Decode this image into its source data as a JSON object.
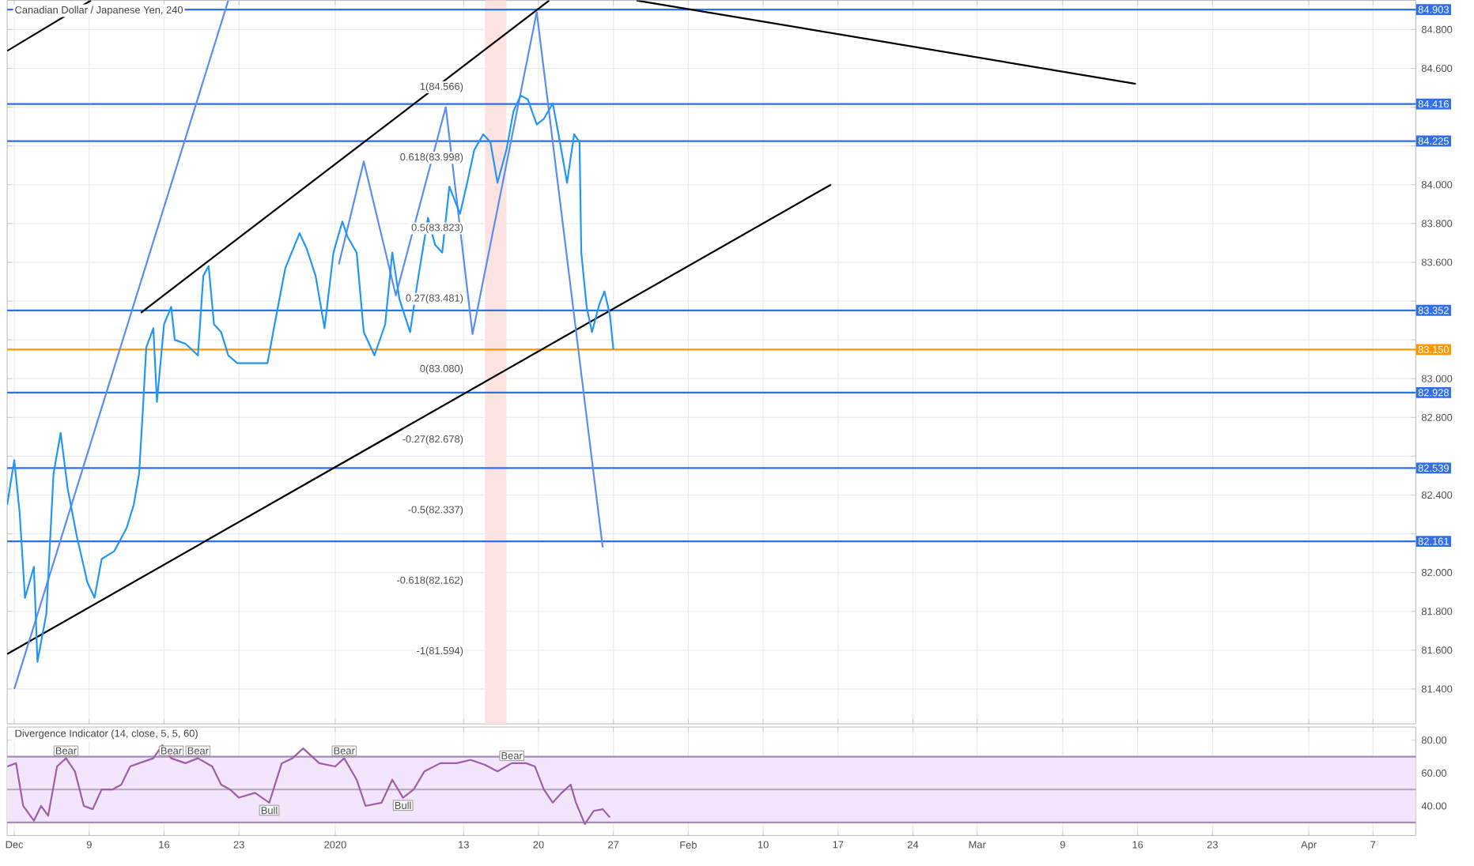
{
  "chart_data": [
    {
      "type": "line",
      "title": "Canadian Dollar / Japanese Yen, 240",
      "xlim": [
        "2019-12-01T08:00",
        "2020-04-11T00:00"
      ],
      "ylim": [
        81.22,
        84.95
      ],
      "xticks": [
        {
          "value": "2019-12-02",
          "label": null
        },
        {
          "value": "2019-12-09",
          "label": null
        },
        {
          "value": "2019-12-16",
          "label": null
        },
        {
          "value": "2019-12-23",
          "label": null
        },
        {
          "value": "2020-01-01",
          "label": null
        },
        {
          "value": "2020-01-13",
          "label": null
        },
        {
          "value": "2020-01-20",
          "label": null
        },
        {
          "value": "2020-01-27",
          "label": null
        },
        {
          "value": "2020-02-03",
          "label": null
        },
        {
          "value": "2020-02-10",
          "label": null
        },
        {
          "value": "2020-02-17",
          "label": null
        },
        {
          "value": "2020-02-24",
          "label": null
        },
        {
          "value": "2020-03-01",
          "label": null
        },
        {
          "value": "2020-03-09",
          "label": null
        },
        {
          "value": "2020-03-16",
          "label": null
        },
        {
          "value": "2020-03-23",
          "label": null
        },
        {
          "value": "2020-04-01",
          "label": null
        },
        {
          "value": "2020-04-07",
          "label": null
        }
      ],
      "yticks": [
        {
          "value": 81.4,
          "label": "81.400"
        },
        {
          "value": 81.6,
          "label": "81.600"
        },
        {
          "value": 81.8,
          "label": "81.800"
        },
        {
          "value": 82.0,
          "label": "82.000"
        },
        {
          "value": 82.2,
          "label": null
        },
        {
          "value": 82.4,
          "label": "82.400"
        },
        {
          "value": 82.6,
          "label": null
        },
        {
          "value": 82.8,
          "label": "82.800"
        },
        {
          "value": 83.0,
          "label": "83.000"
        },
        {
          "value": 83.2,
          "label": null
        },
        {
          "value": 83.4,
          "label": null
        },
        {
          "value": 83.6,
          "label": "83.600"
        },
        {
          "value": 83.8,
          "label": "83.800"
        },
        {
          "value": 84.0,
          "label": "84.000"
        },
        {
          "value": 84.2,
          "label": null
        },
        {
          "value": 84.4,
          "label": null
        },
        {
          "value": 84.6,
          "label": "84.600"
        },
        {
          "value": 84.8,
          "label": "84.800"
        }
      ],
      "grid": true,
      "tick_labels": "y",
      "bands": [
        {
          "axis": "x",
          "from": "2020-01-15",
          "to": "2020-01-17",
          "color": "#fde2e2"
        }
      ],
      "ref_lines": [
        {
          "axis": "y",
          "value": 84.903,
          "label": "84.903",
          "color": "#2f6fe8"
        },
        {
          "axis": "y",
          "value": 84.416,
          "label": "84.416",
          "color": "#2f6fe8"
        },
        {
          "axis": "y",
          "value": 84.225,
          "label": "84.225",
          "color": "#2f6fe8"
        },
        {
          "axis": "y",
          "value": 83.352,
          "label": "83.352",
          "color": "#2f6fe8"
        },
        {
          "axis": "y",
          "value": 83.15,
          "label": "83.150",
          "color": "#ff9800"
        },
        {
          "axis": "y",
          "value": 82.928,
          "label": "82.928",
          "color": "#2f6fe8"
        },
        {
          "axis": "y",
          "value": 82.539,
          "label": "82.539",
          "color": "#2f6fe8"
        },
        {
          "axis": "y",
          "value": 82.161,
          "label": "82.161",
          "color": "#2f6fe8"
        }
      ],
      "series": [
        {
          "color": "#000000",
          "x": [
            "2019-12-01T08:00",
            "2019-12-09T04:00"
          ],
          "values": [
            84.69,
            84.95
          ]
        },
        {
          "color": "#000000",
          "x": [
            "2019-12-13T20:00",
            "2020-01-21T00:00"
          ],
          "values": [
            83.34,
            84.95
          ]
        },
        {
          "color": "#000000",
          "x": [
            "2019-12-01T08:00",
            "2020-02-16T08:00"
          ],
          "values": [
            81.58,
            84.0
          ]
        },
        {
          "color": "#000000",
          "x": [
            "2020-01-29T04:00",
            "2020-03-15T20:00"
          ],
          "values": [
            84.95,
            84.52
          ]
        },
        {
          "color": "#5b8def",
          "x": [
            "2019-12-02T00:00",
            "2019-12-22T00:00"
          ],
          "values": [
            81.4,
            84.95
          ]
        },
        {
          "color": "#5b8def",
          "x": [
            "2020-01-01T08:00",
            "2020-01-03T16:00",
            "2020-01-06T16:00",
            "2020-01-11T08:00",
            "2020-01-13T20:00",
            "2020-01-19T20:00",
            "2020-01-26T00:00"
          ],
          "values": [
            83.59,
            84.12,
            83.43,
            84.4,
            83.23,
            84.89,
            82.13
          ]
        },
        {
          "color": "#2196f3",
          "x": [
            "2019-12-01T08:00",
            "2019-12-02T00:00",
            "2019-12-02T12:00",
            "2019-12-03T00:00",
            "2019-12-03T20:00",
            "2019-12-04T04:00",
            "2019-12-05T00:00",
            "2019-12-05T16:00",
            "2019-12-06T08:00",
            "2019-12-07T00:00",
            "2019-12-07T20:00",
            "2019-12-08T20:00",
            "2019-12-09T12:00",
            "2019-12-10T04:00",
            "2019-12-11T08:00",
            "2019-12-12T12:00",
            "2019-12-13T04:00",
            "2019-12-13T16:00",
            "2019-12-14T00:00",
            "2019-12-14T08:00",
            "2019-12-15T00:00",
            "2019-12-15T08:00",
            "2019-12-16T00:00",
            "2019-12-16T16:00",
            "2019-12-17T00:00",
            "2019-12-18T00:00",
            "2019-12-19T04:00",
            "2019-12-19T16:00",
            "2019-12-20T04:00",
            "2019-12-20T16:00",
            "2019-12-21T08:00",
            "2019-12-22T00:00",
            "2019-12-22T20:00",
            "2019-12-23T12:00",
            "2019-12-24T08:00",
            "2019-12-25T16:00",
            "2019-12-26T08:00",
            "2019-12-27T08:00",
            "2019-12-28T16:00",
            "2019-12-29T08:00",
            "2019-12-30T04:00",
            "2019-12-31T00:00",
            "2019-12-31T20:00",
            "2020-01-01T16:00",
            "2020-01-02T04:00",
            "2020-01-03T00:00",
            "2020-01-03T16:00",
            "2020-01-04T16:00",
            "2020-01-05T16:00",
            "2020-01-06T08:00",
            "2020-01-07T00:00",
            "2020-01-08T00:00",
            "2020-01-08T16:00",
            "2020-01-09T16:00",
            "2020-01-10T08:00",
            "2020-01-11T00:00",
            "2020-01-11T16:00",
            "2020-01-12T16:00",
            "2020-01-13T08:00",
            "2020-01-14T00:00",
            "2020-01-14T20:00",
            "2020-01-15T12:00",
            "2020-01-16T04:00",
            "2020-01-17T00:00",
            "2020-01-17T16:00",
            "2020-01-18T08:00",
            "2020-01-19T00:00",
            "2020-01-19T20:00",
            "2020-01-20T12:00",
            "2020-01-21T08:00",
            "2020-01-22T00:00",
            "2020-01-22T16:00",
            "2020-01-23T08:00",
            "2020-01-23T20:00",
            "2020-01-24T00:00",
            "2020-01-24T12:00",
            "2020-01-25T00:00",
            "2020-01-25T16:00",
            "2020-01-26T04:00",
            "2020-01-26T16:00",
            "2020-01-27T00:00"
          ],
          "values": [
            82.35,
            82.58,
            82.31,
            81.87,
            82.03,
            81.54,
            81.79,
            82.51,
            82.72,
            82.43,
            82.19,
            81.95,
            81.87,
            82.07,
            82.11,
            82.23,
            82.35,
            82.51,
            82.82,
            83.16,
            83.26,
            82.88,
            83.28,
            83.37,
            83.2,
            83.18,
            83.12,
            83.53,
            83.58,
            83.28,
            83.24,
            83.12,
            83.08,
            83.08,
            83.08,
            83.08,
            83.28,
            83.57,
            83.75,
            83.67,
            83.53,
            83.26,
            83.65,
            83.81,
            83.73,
            83.65,
            83.24,
            83.12,
            83.28,
            83.65,
            83.41,
            83.24,
            83.49,
            83.83,
            83.69,
            83.65,
            83.99,
            83.85,
            84.01,
            84.18,
            84.26,
            84.22,
            84.01,
            84.18,
            84.38,
            84.46,
            84.44,
            84.31,
            84.34,
            84.42,
            84.22,
            84.01,
            84.26,
            84.22,
            83.65,
            83.37,
            83.24,
            83.38,
            83.45,
            83.33,
            83.15
          ]
        }
      ],
      "annotations": [
        "1(84.566)",
        "0.618(83.998)",
        "0.5(83.823)",
        "0.27(83.481)",
        "0(83.080)",
        "-0.27(82.678)",
        "-0.5(82.337)",
        "-0.618(82.162)",
        "-1(81.594)"
      ]
    },
    {
      "type": "line",
      "title": "Divergence Indicator (14, close, 5, 5, 60)",
      "xlim": [
        "2019-12-01T08:00",
        "2020-04-11T00:00"
      ],
      "ylim": [
        22,
        88
      ],
      "xticks": [
        {
          "value": "2019-12-02",
          "label": "Dec"
        },
        {
          "value": "2019-12-09",
          "label": "9"
        },
        {
          "value": "2019-12-16",
          "label": "16"
        },
        {
          "value": "2019-12-23",
          "label": "23"
        },
        {
          "value": "2020-01-01",
          "label": "2020"
        },
        {
          "value": "2020-01-13",
          "label": "13"
        },
        {
          "value": "2020-01-20",
          "label": "20"
        },
        {
          "value": "2020-01-27",
          "label": "27"
        },
        {
          "value": "2020-02-03",
          "label": "Feb"
        },
        {
          "value": "2020-02-10",
          "label": "10"
        },
        {
          "value": "2020-02-17",
          "label": "17"
        },
        {
          "value": "2020-02-24",
          "label": "24"
        },
        {
          "value": "2020-03-01",
          "label": "Mar"
        },
        {
          "value": "2020-03-09",
          "label": "9"
        },
        {
          "value": "2020-03-16",
          "label": "16"
        },
        {
          "value": "2020-03-23",
          "label": "23"
        },
        {
          "value": "2020-04-01",
          "label": "Apr"
        },
        {
          "value": "2020-04-07",
          "label": "7"
        }
      ],
      "yticks": [
        {
          "value": 40,
          "label": "40.00"
        },
        {
          "value": 60,
          "label": "60.00"
        },
        {
          "value": 80,
          "label": "80.00"
        }
      ],
      "grid": "x",
      "bands": [
        {
          "axis": "y",
          "from": 30,
          "to": 70,
          "color": "#f3e6fc"
        }
      ],
      "ref_lines": [
        {
          "axis": "y",
          "value": 70,
          "color": "#a78bb5"
        },
        {
          "axis": "y",
          "value": 50,
          "color": "#b9aabf"
        },
        {
          "axis": "y",
          "value": 30,
          "color": "#a78bb5"
        }
      ],
      "series": [
        {
          "color": "#9c5fa8",
          "x": [
            "2019-12-01T08:00",
            "2019-12-02T04:00",
            "2019-12-02T20:00",
            "2019-12-03T20:00",
            "2019-12-04T12:00",
            "2019-12-05T04:00",
            "2019-12-06T00:00",
            "2019-12-06T20:00",
            "2019-12-07T16:00",
            "2019-12-08T12:00",
            "2019-12-09T08:00",
            "2019-12-10T04:00",
            "2019-12-11T04:00",
            "2019-12-12T00:00",
            "2019-12-12T20:00",
            "2019-12-13T16:00",
            "2019-12-15T00:00",
            "2019-12-15T20:00",
            "2019-12-16T16:00",
            "2019-12-18T00:00",
            "2019-12-19T04:00",
            "2019-12-20T12:00",
            "2019-12-21T08:00",
            "2019-12-22T04:00",
            "2019-12-23T00:00",
            "2019-12-24T12:00",
            "2019-12-25T20:00",
            "2019-12-27T00:00",
            "2019-12-28T00:00",
            "2019-12-29T00:00",
            "2019-12-30T12:00",
            "2020-01-01T00:00",
            "2020-01-01T20:00",
            "2020-01-03T00:00",
            "2020-01-03T20:00",
            "2020-01-05T08:00",
            "2020-01-06T08:00",
            "2020-01-07T08:00",
            "2020-01-08T08:00",
            "2020-01-09T08:00",
            "2020-01-10T20:00",
            "2020-01-12T08:00",
            "2020-01-13T16:00",
            "2020-01-15T00:00",
            "2020-01-16T04:00",
            "2020-01-17T12:00",
            "2020-01-18T20:00",
            "2020-01-19T16:00",
            "2020-01-20T12:00",
            "2020-01-21T08:00",
            "2020-01-22T04:00",
            "2020-01-23T00:00",
            "2020-01-23T12:00",
            "2020-01-24T08:00",
            "2020-01-25T04:00",
            "2020-01-26T00:00",
            "2020-01-26T16:00"
          ],
          "values": [
            64,
            66,
            40,
            31,
            40,
            34,
            64,
            69,
            61,
            40,
            38,
            50,
            50,
            53,
            64,
            66,
            69,
            77,
            69,
            66,
            69,
            64,
            53,
            50,
            45,
            48,
            42,
            66,
            69,
            75,
            66,
            64,
            69,
            56,
            40,
            42,
            56,
            45,
            50,
            61,
            66,
            66,
            68,
            65,
            61,
            66,
            66,
            64,
            50,
            42,
            48,
            53,
            42,
            29,
            37,
            38,
            33
          ]
        }
      ],
      "annotations": [
        {
          "text": "Bear",
          "x": "2019-12-06T20:00",
          "y": 69
        },
        {
          "text": "Bear",
          "x": "2019-12-16T16:00",
          "y": 69
        },
        {
          "text": "Bear",
          "x": "2019-12-19T04:00",
          "y": 69
        },
        {
          "text": "Bear",
          "x": "2020-01-01T20:00",
          "y": 69
        },
        {
          "text": "Bear",
          "x": "2020-01-17T12:00",
          "y": 66
        },
        {
          "text": "Bull",
          "x": "2019-12-25T20:00",
          "y": 42
        },
        {
          "text": "Bull",
          "x": "2020-01-07T08:00",
          "y": 45
        }
      ]
    }
  ]
}
